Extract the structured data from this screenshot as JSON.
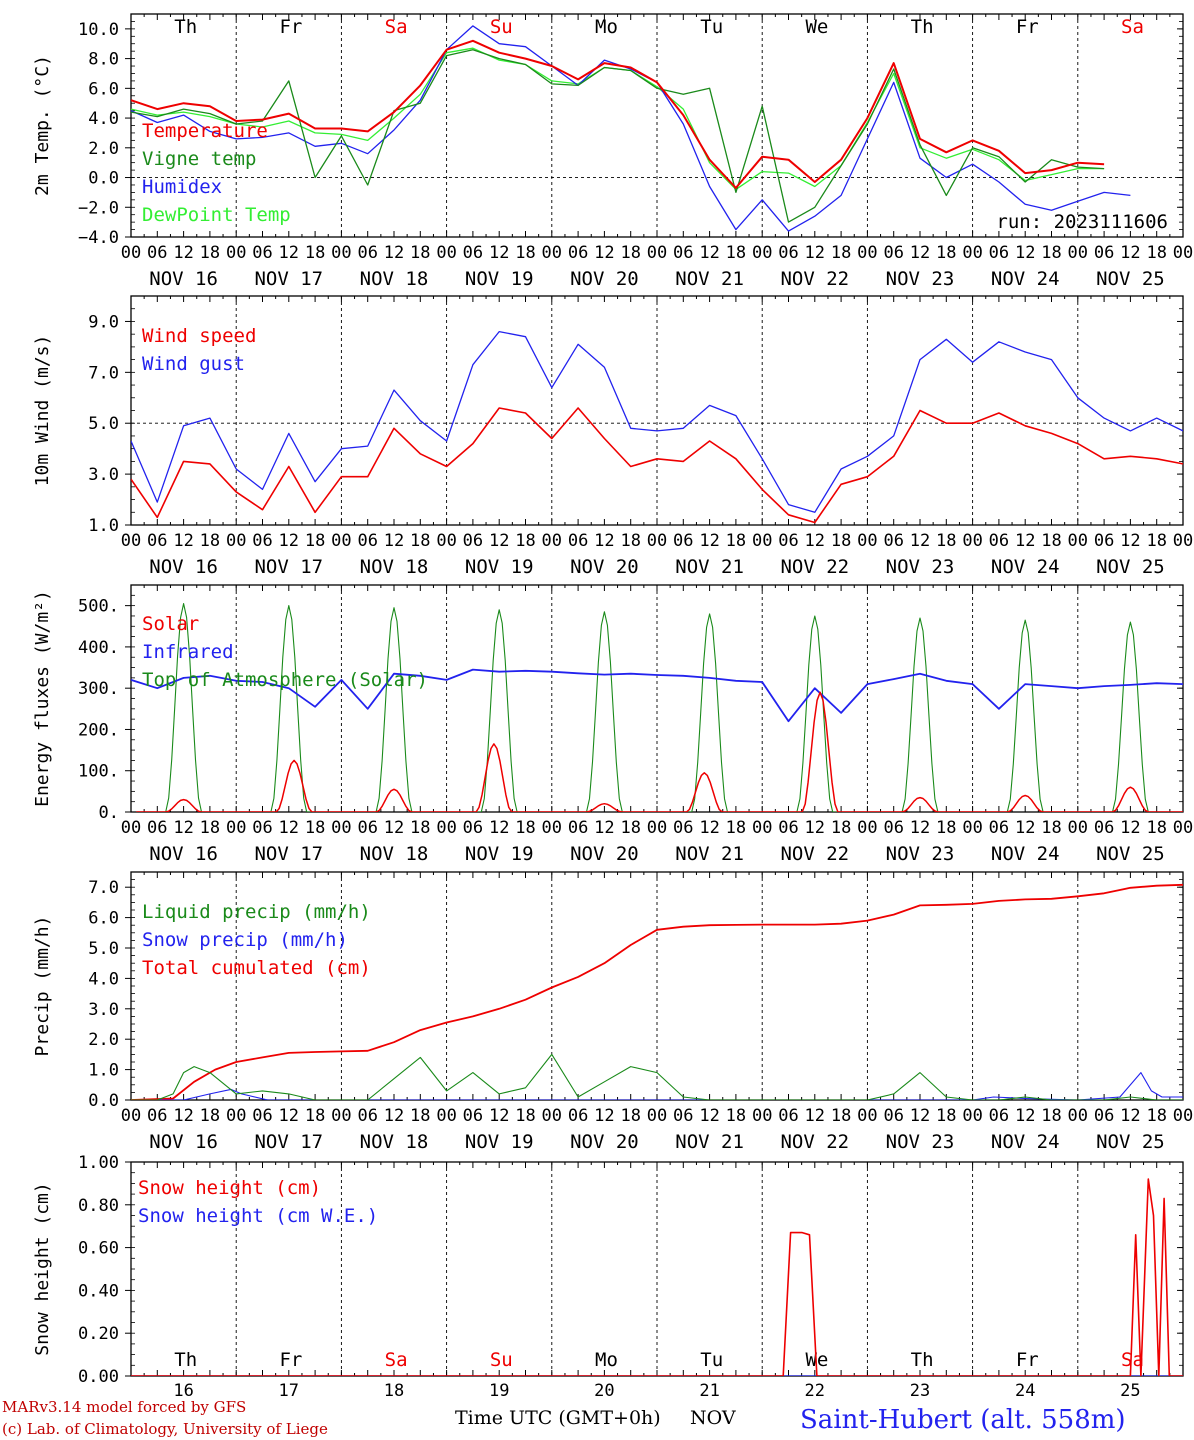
{
  "meta": {
    "run": "run: 2023111606",
    "model_credit": "MARv3.14 model forced by GFS",
    "lab_credit": "(c) Lab. of Climatology, University of Liege",
    "station": "Saint-Hubert (alt. 558m)",
    "xaxis_title": "Time UTC (GMT+0h)",
    "month": "NOV"
  },
  "days": [
    "Th",
    "Fr",
    "Sa",
    "Su",
    "Mo",
    "Tu",
    "We",
    "Th",
    "Fr",
    "Sa"
  ],
  "day_colors": [
    "#000000",
    "#000000",
    "#ee0000",
    "#ee0000",
    "#000000",
    "#000000",
    "#000000",
    "#000000",
    "#000000",
    "#ee0000"
  ],
  "dates": [
    "NOV 16",
    "NOV 17",
    "NOV 18",
    "NOV 19",
    "NOV 20",
    "NOV 21",
    "NOV 22",
    "NOV 23",
    "NOV 24",
    "NOV 25"
  ],
  "day_numbers": [
    "16",
    "17",
    "18",
    "19",
    "20",
    "21",
    "22",
    "23",
    "24",
    "25"
  ],
  "hour_ticks": [
    "00",
    "06",
    "12",
    "18"
  ],
  "chart_data": [
    {
      "type": "line",
      "ylabel": "2m Temp. (°C)",
      "ylim": [
        -4,
        11
      ],
      "yticks": [
        -4,
        -2,
        0,
        2,
        4,
        6,
        8,
        10
      ],
      "ytick_labels": [
        "−4.0",
        "−2.0",
        "0.0",
        "2.0",
        "4.0",
        "6.0",
        "8.0",
        "10.0"
      ],
      "ref_line": 0,
      "x_unit": "days since NOV 16 00 UTC",
      "series": [
        {
          "name": "Temperature",
          "color": "#ee0000",
          "width": 2,
          "x": [
            0,
            0.25,
            0.5,
            0.75,
            1,
            1.25,
            1.5,
            1.75,
            2,
            2.25,
            2.5,
            2.75,
            3,
            3.25,
            3.5,
            3.75,
            4,
            4.25,
            4.5,
            4.75,
            5,
            5.25,
            5.5,
            5.75,
            6,
            6.25,
            6.5,
            6.75,
            7,
            7.25,
            7.5,
            7.75,
            8,
            8.25,
            8.5,
            8.75,
            9,
            9.25,
            9.5,
            9.75,
            10
          ],
          "y": [
            5.2,
            4.6,
            5.0,
            4.8,
            3.8,
            3.9,
            4.3,
            3.3,
            3.3,
            3.1,
            4.4,
            6.2,
            8.6,
            9.2,
            8.4,
            8.0,
            7.5,
            6.6,
            7.7,
            7.4,
            6.4,
            4.2,
            1.2,
            -0.7,
            1.4,
            1.2,
            -0.3,
            1.2,
            4.0,
            7.7,
            2.6,
            1.7,
            2.5,
            1.8,
            0.3,
            0.5,
            1.0,
            0.9,
            null,
            null,
            null
          ]
        },
        {
          "name": "Vigne temp",
          "color": "#1a8a1a",
          "width": 1.3,
          "x": [
            0,
            0.25,
            0.5,
            0.75,
            1,
            1.25,
            1.5,
            1.75,
            2,
            2.25,
            2.5,
            2.75,
            3,
            3.25,
            3.5,
            3.75,
            4,
            4.25,
            4.5,
            4.75,
            5,
            5.25,
            5.5,
            5.75,
            6,
            6.25,
            6.5,
            6.75,
            7,
            7.25,
            7.5,
            7.75,
            8,
            8.25,
            8.5,
            8.75,
            9,
            9.25,
            9.5,
            9.75,
            10
          ],
          "y": [
            4.4,
            4.1,
            4.6,
            4.3,
            3.6,
            3.8,
            6.5,
            0.0,
            2.8,
            -0.5,
            4.5,
            5.0,
            8.2,
            8.6,
            8.0,
            7.6,
            6.3,
            6.2,
            7.4,
            7.2,
            6.0,
            5.6,
            6.0,
            -1.0,
            4.8,
            -3.0,
            -2.0,
            0.8,
            3.6,
            7.3,
            2.2,
            -1.2,
            2.0,
            1.4,
            -0.3,
            1.2,
            0.7,
            0.6,
            null,
            null,
            null
          ]
        },
        {
          "name": "Humidex",
          "color": "#2222ee",
          "width": 1.3,
          "x": [
            0,
            0.25,
            0.5,
            0.75,
            1,
            1.25,
            1.5,
            1.75,
            2,
            2.25,
            2.5,
            2.75,
            3,
            3.25,
            3.5,
            3.75,
            4,
            4.25,
            4.5,
            4.75,
            5,
            5.25,
            5.5,
            5.75,
            6,
            6.25,
            6.5,
            6.75,
            7,
            7.25,
            7.5,
            7.75,
            8,
            8.25,
            8.5,
            8.75,
            9,
            9.25,
            9.5,
            9.75,
            10
          ],
          "y": [
            4.5,
            3.7,
            4.2,
            3.1,
            2.6,
            2.7,
            3.0,
            2.1,
            2.3,
            1.6,
            3.2,
            5.2,
            8.6,
            10.2,
            9.0,
            8.8,
            7.5,
            6.2,
            7.9,
            7.3,
            6.4,
            3.6,
            -0.6,
            -3.5,
            -1.5,
            -3.6,
            -2.6,
            -1.2,
            2.6,
            6.4,
            1.3,
            0.0,
            0.9,
            -0.3,
            -1.8,
            -2.2,
            -1.6,
            -1.0,
            -1.2,
            null,
            null
          ]
        },
        {
          "name": "DewPoint Temp",
          "color": "#33ee33",
          "width": 1.3,
          "x": [
            0,
            0.25,
            0.5,
            0.75,
            1,
            1.25,
            1.5,
            1.75,
            2,
            2.25,
            2.5,
            2.75,
            3,
            3.25,
            3.5,
            3.75,
            4,
            4.25,
            4.5,
            4.75,
            5,
            5.25,
            5.5,
            5.75,
            6,
            6.25,
            6.5,
            6.75,
            7,
            7.25,
            7.5,
            7.75,
            8,
            8.25,
            8.5,
            8.75,
            9,
            9.25,
            9.5,
            9.75,
            10
          ],
          "y": [
            4.6,
            4.2,
            4.4,
            4.1,
            3.6,
            3.4,
            3.8,
            3.0,
            2.9,
            2.5,
            4.0,
            5.6,
            8.4,
            8.7,
            7.9,
            7.6,
            6.5,
            6.3,
            7.4,
            7.2,
            6.1,
            4.6,
            1.0,
            -0.8,
            0.4,
            0.3,
            -0.6,
            0.8,
            3.7,
            7.0,
            2.0,
            1.3,
            1.9,
            1.2,
            -0.2,
            0.2,
            0.6,
            0.6,
            null,
            null,
            null
          ]
        }
      ]
    },
    {
      "type": "line",
      "ylabel": "10m Wind (m/s)",
      "ylim": [
        1,
        10
      ],
      "yticks": [
        1,
        3,
        5,
        7,
        9
      ],
      "ytick_labels": [
        "1.0",
        "3.0",
        "5.0",
        "7.0",
        "9.0"
      ],
      "ref_line": 5,
      "x_unit": "days since NOV 16 00 UTC",
      "series": [
        {
          "name": "Wind speed",
          "color": "#ee0000",
          "width": 1.6,
          "x": [
            0,
            0.25,
            0.5,
            0.75,
            1,
            1.25,
            1.5,
            1.75,
            2,
            2.25,
            2.5,
            2.75,
            3,
            3.25,
            3.5,
            3.75,
            4,
            4.25,
            4.5,
            4.75,
            5,
            5.25,
            5.5,
            5.75,
            6,
            6.25,
            6.5,
            6.75,
            7,
            7.25,
            7.5,
            7.75,
            8,
            8.25,
            8.5,
            8.75,
            9,
            9.25,
            9.5,
            9.75,
            10
          ],
          "y": [
            2.8,
            1.3,
            3.5,
            3.4,
            2.3,
            1.6,
            3.3,
            1.5,
            2.9,
            2.9,
            4.8,
            3.8,
            3.3,
            4.2,
            5.6,
            5.4,
            4.4,
            5.6,
            4.4,
            3.3,
            3.6,
            3.5,
            4.3,
            3.6,
            2.4,
            1.4,
            1.1,
            2.6,
            2.9,
            3.7,
            5.5,
            5.0,
            5.0,
            5.4,
            4.9,
            4.6,
            4.2,
            3.6,
            3.7,
            3.6,
            3.4
          ]
        },
        {
          "name": "Wind gust",
          "color": "#2222ee",
          "width": 1.3,
          "x": [
            0,
            0.25,
            0.5,
            0.75,
            1,
            1.25,
            1.5,
            1.75,
            2,
            2.25,
            2.5,
            2.75,
            3,
            3.25,
            3.5,
            3.75,
            4,
            4.25,
            4.5,
            4.75,
            5,
            5.25,
            5.5,
            5.75,
            6,
            6.25,
            6.5,
            6.75,
            7,
            7.25,
            7.5,
            7.75,
            8,
            8.25,
            8.5,
            8.75,
            9,
            9.25,
            9.5,
            9.75,
            10
          ],
          "y": [
            4.3,
            1.9,
            4.9,
            5.2,
            3.2,
            2.4,
            4.6,
            2.7,
            4.0,
            4.1,
            6.3,
            5.1,
            4.3,
            7.3,
            8.6,
            8.4,
            6.4,
            8.1,
            7.2,
            4.8,
            4.7,
            4.8,
            5.7,
            5.3,
            3.6,
            1.8,
            1.5,
            3.2,
            3.7,
            4.5,
            7.5,
            8.3,
            7.4,
            8.2,
            7.8,
            7.5,
            6.0,
            5.2,
            4.7,
            5.2,
            4.7
          ]
        }
      ]
    },
    {
      "type": "line",
      "ylabel": "Energy fluxes (W/m²)",
      "ylim": [
        0,
        550
      ],
      "yticks": [
        0,
        100,
        200,
        300,
        400,
        500
      ],
      "ytick_labels": [
        "0.",
        "100.",
        "200.",
        "300.",
        "400.",
        "500."
      ],
      "ref_line": null,
      "x_unit": "days since NOV 16 00 UTC",
      "series": [
        {
          "name": "Solar",
          "color": "#ee0000",
          "width": 1.5,
          "peaks": [
            30,
            125,
            55,
            165,
            20,
            95,
            290,
            35,
            40,
            60
          ],
          "peak_offset": [
            0.5,
            0.55,
            0.5,
            0.45,
            0.5,
            0.45,
            0.55,
            0.5,
            0.5,
            0.5
          ]
        },
        {
          "name": "Infrared",
          "color": "#2222ee",
          "width": 1.8,
          "x": [
            0,
            0.25,
            0.5,
            0.75,
            1,
            1.25,
            1.5,
            1.75,
            2,
            2.25,
            2.5,
            2.75,
            3,
            3.25,
            3.5,
            3.75,
            4,
            4.25,
            4.5,
            4.75,
            5,
            5.25,
            5.5,
            5.75,
            6,
            6.25,
            6.5,
            6.75,
            7,
            7.25,
            7.5,
            7.75,
            8,
            8.25,
            8.5,
            8.75,
            9,
            9.25,
            9.5,
            9.75,
            10
          ],
          "y": [
            320,
            300,
            325,
            330,
            318,
            315,
            300,
            255,
            320,
            250,
            335,
            330,
            320,
            345,
            340,
            342,
            340,
            336,
            333,
            335,
            332,
            330,
            325,
            318,
            315,
            220,
            300,
            240,
            310,
            322,
            335,
            318,
            310,
            250,
            310,
            305,
            300,
            305,
            308,
            312,
            310
          ]
        },
        {
          "name": "Top of Atmosphere (Solar)",
          "color": "#1a8a1a",
          "width": 1.1,
          "peaks": [
            505,
            500,
            495,
            490,
            485,
            480,
            475,
            470,
            465,
            460
          ]
        }
      ]
    },
    {
      "type": "line",
      "ylabel": "Precip (mm/h)",
      "ylim": [
        0,
        7.5
      ],
      "yticks": [
        0,
        1,
        2,
        3,
        4,
        5,
        6,
        7
      ],
      "ytick_labels": [
        "0.0",
        "1.0",
        "2.0",
        "3.0",
        "4.0",
        "5.0",
        "6.0",
        "7.0"
      ],
      "ref_line": null,
      "x_unit": "days since NOV 16 00 UTC",
      "series": [
        {
          "name": "Liquid precip (mm/h)",
          "color": "#1a8a1a",
          "width": 1.1,
          "x": [
            0,
            0.25,
            0.4,
            0.5,
            0.6,
            0.75,
            1,
            1.25,
            1.5,
            1.75,
            2,
            2.25,
            2.5,
            2.75,
            3,
            3.25,
            3.5,
            3.75,
            4,
            4.25,
            4.5,
            4.75,
            5,
            5.25,
            5.5,
            5.75,
            6,
            6.5,
            7,
            7.25,
            7.5,
            7.75,
            8,
            8.25,
            8.5,
            8.75,
            9,
            9.25,
            9.5,
            9.75,
            10
          ],
          "y": [
            0,
            0,
            0.2,
            0.9,
            1.1,
            0.9,
            0.2,
            0.3,
            0.2,
            0,
            0,
            0,
            0.7,
            1.4,
            0.3,
            0.9,
            0.2,
            0.4,
            1.5,
            0.1,
            0.6,
            1.1,
            0.9,
            0.1,
            0,
            0,
            0,
            0,
            0,
            0.2,
            0.9,
            0.1,
            0,
            0,
            0.1,
            0,
            0,
            0,
            0.1,
            0,
            0
          ]
        },
        {
          "name": "Snow precip (mm/h)",
          "color": "#2222ee",
          "width": 1.1,
          "x": [
            0,
            0.5,
            0.75,
            0.95,
            1.05,
            1.3,
            1.5,
            8,
            8.2,
            8.5,
            9,
            9.4,
            9.6,
            9.7,
            9.8,
            10
          ],
          "y": [
            0,
            0,
            0.2,
            0.35,
            0.2,
            0,
            0,
            0,
            0.1,
            0.05,
            0,
            0.1,
            0.9,
            0.3,
            0.1,
            0.1
          ]
        },
        {
          "name": "Total cumulated (cm)",
          "color": "#ee0000",
          "width": 1.8,
          "x": [
            0,
            0.4,
            0.6,
            0.8,
            1,
            1.25,
            1.5,
            1.75,
            2,
            2.25,
            2.5,
            2.75,
            3,
            3.25,
            3.5,
            3.75,
            4,
            4.25,
            4.5,
            4.75,
            5,
            5.25,
            5.5,
            5.75,
            6,
            6.25,
            6.5,
            6.75,
            7,
            7.25,
            7.5,
            7.75,
            8,
            8.25,
            8.5,
            8.75,
            9,
            9.25,
            9.5,
            9.75,
            10
          ],
          "y": [
            0,
            0.05,
            0.6,
            1.0,
            1.25,
            1.4,
            1.55,
            1.58,
            1.6,
            1.62,
            1.9,
            2.3,
            2.55,
            2.75,
            3.0,
            3.3,
            3.7,
            4.05,
            4.5,
            5.1,
            5.6,
            5.7,
            5.75,
            5.76,
            5.77,
            5.77,
            5.77,
            5.8,
            5.9,
            6.1,
            6.4,
            6.42,
            6.45,
            6.55,
            6.6,
            6.62,
            6.7,
            6.8,
            6.98,
            7.05,
            7.08
          ]
        }
      ]
    },
    {
      "type": "line",
      "ylabel": "Snow height (cm)",
      "ylim": [
        0,
        1.0
      ],
      "yticks": [
        0,
        0.2,
        0.4,
        0.6,
        0.8,
        1.0
      ],
      "ytick_labels": [
        "0.00",
        "0.20",
        "0.40",
        "0.60",
        "0.80",
        "1.00"
      ],
      "ref_line": null,
      "x_unit": "days since NOV 16 00 UTC",
      "series": [
        {
          "name": "Snow height (cm)",
          "color": "#ee0000",
          "width": 1.6,
          "x": [
            0,
            6.2,
            6.27,
            6.38,
            6.45,
            6.52,
            9.5,
            9.55,
            9.6,
            9.67,
            9.72,
            9.77,
            9.82,
            9.87,
            9.92,
            9.97,
            10
          ],
          "y": [
            0,
            0,
            0.67,
            0.67,
            0.66,
            0,
            0,
            0.66,
            0,
            0.92,
            0.75,
            0,
            0.83,
            0,
            0,
            0,
            0
          ]
        },
        {
          "name": "Snow height (cm W.E.)",
          "color": "#2222ee",
          "width": 1.3,
          "x": [
            0,
            10
          ],
          "y": [
            0,
            0
          ]
        }
      ]
    }
  ]
}
